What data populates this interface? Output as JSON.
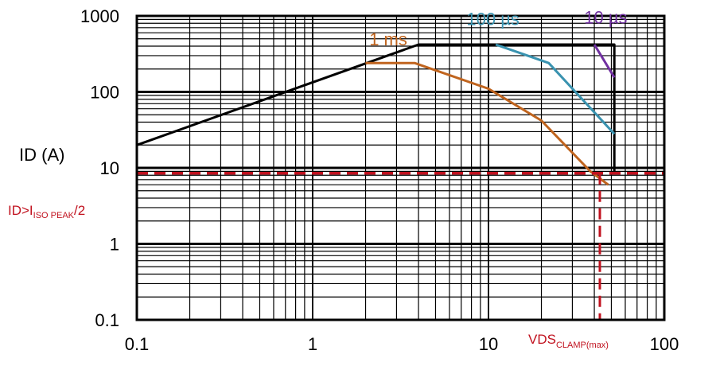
{
  "chart_data": {
    "type": "line",
    "x_scale": "log",
    "y_scale": "log",
    "xlim": [
      0.1,
      100
    ],
    "ylim": [
      0.1,
      1000
    ],
    "grid": true,
    "x_ticks": [
      "0.1",
      "1",
      "10",
      "100"
    ],
    "y_ticks": [
      "0.1",
      "1",
      "10",
      "100",
      "1000"
    ],
    "ylabel": "ID (A)",
    "xlabel": "",
    "series": [
      {
        "name": "",
        "color": "#000000",
        "points": [
          [
            0.1,
            20
          ],
          [
            4,
            420
          ],
          [
            52,
            420
          ],
          [
            52,
            8.5
          ]
        ]
      },
      {
        "name": "1 ms",
        "color": "#c0641e",
        "points": [
          [
            2,
            240
          ],
          [
            3.8,
            240
          ],
          [
            10,
            110
          ],
          [
            20,
            42
          ],
          [
            38,
            9
          ],
          [
            48,
            6
          ]
        ]
      },
      {
        "name": "100 µs",
        "color": "#3a93b0",
        "points": [
          [
            11,
            420
          ],
          [
            22,
            240
          ],
          [
            52,
            28
          ]
        ]
      },
      {
        "name": "10 µs",
        "color": "#7030a0",
        "points": [
          [
            40,
            420
          ],
          [
            52,
            155
          ]
        ]
      }
    ],
    "series_labels": [
      {
        "text": "1 ms",
        "color": "#c0641e",
        "x": 2.1,
        "y": 410
      },
      {
        "text": "100 µs",
        "color": "#3a93b0",
        "x": 7.5,
        "y": 760
      },
      {
        "text": "10 µs",
        "color": "#7030a0",
        "x": 35,
        "y": 800
      }
    ],
    "annotations": {
      "id_limit": {
        "value": 8.5,
        "color": "#c1121f",
        "label_main": "ID>I",
        "label_sub": "ISO PEAK",
        "label_tail": "/2"
      },
      "vds_clamp": {
        "value": 43,
        "color": "#c1121f",
        "label_main": "VDS",
        "label_sub": "CLAMP(max)"
      }
    }
  }
}
